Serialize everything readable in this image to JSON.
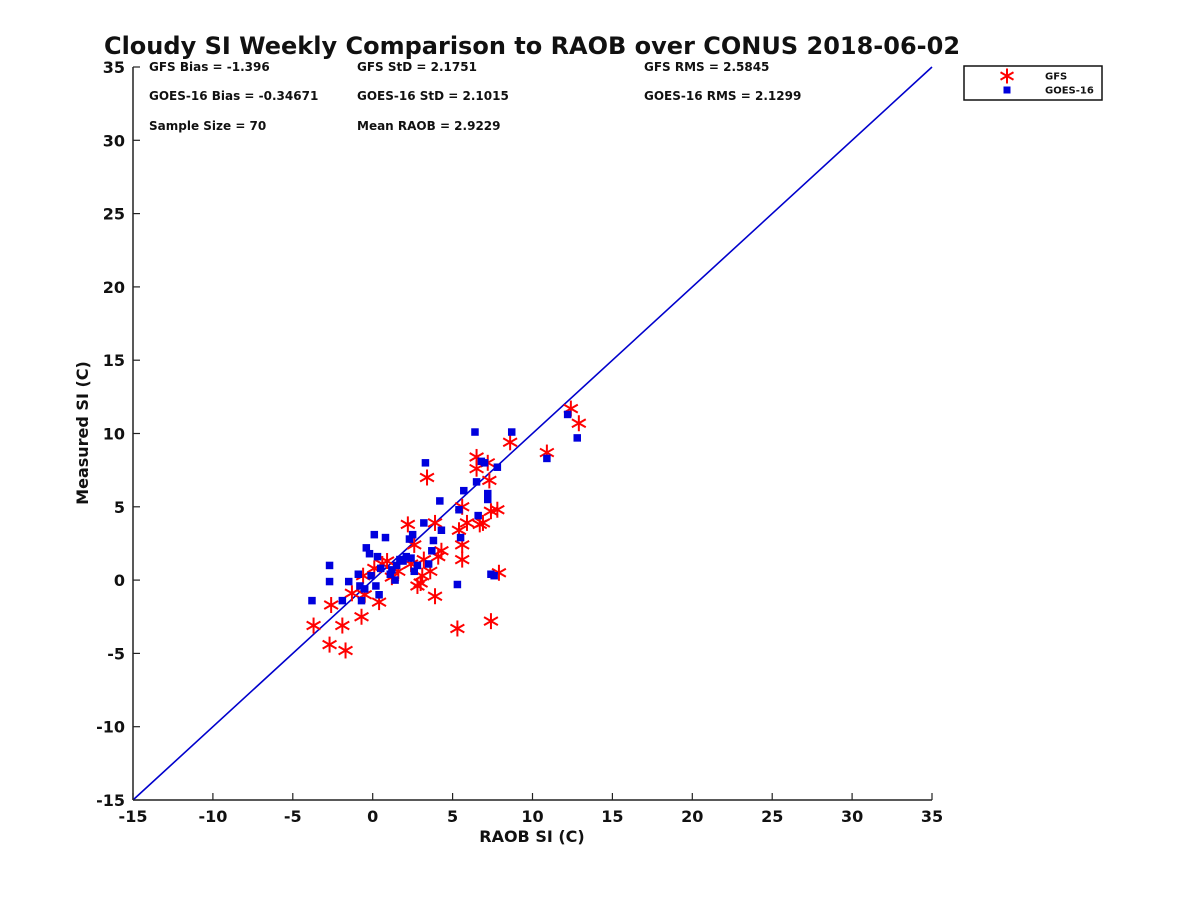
{
  "chart_data": {
    "type": "scatter",
    "title": "Cloudy SI Weekly Comparison to RAOB over CONUS 2018-06-02",
    "xlabel": "RAOB SI (C)",
    "ylabel": "Measured SI (C)",
    "xlim": [
      -15,
      35
    ],
    "ylim": [
      -15,
      35
    ],
    "xticks": [
      -15,
      -10,
      -5,
      0,
      5,
      10,
      15,
      20,
      25,
      30,
      35
    ],
    "yticks": [
      -15,
      -10,
      -5,
      0,
      5,
      10,
      15,
      20,
      25,
      30,
      35
    ],
    "grid": false,
    "legend_position": "top-right (outside plot)",
    "reference_line": {
      "from": [
        -15,
        -15
      ],
      "to": [
        35,
        35
      ],
      "color": "#0000cc"
    },
    "stats": [
      [
        "GFS Bias = -1.396",
        "GFS StD = 2.1751",
        "GFS RMS = 2.5845"
      ],
      [
        "GOES-16 Bias = -0.34671",
        "GOES-16 StD = 2.1015",
        "GOES-16 RMS = 2.1299"
      ],
      [
        "Sample Size = 70",
        "Mean RAOB = 2.9229",
        ""
      ]
    ],
    "series": [
      {
        "name": "GFS",
        "marker": "asterisk",
        "color": "#ff0000",
        "points": [
          [
            -3.7,
            -3.1
          ],
          [
            -2.6,
            -1.7
          ],
          [
            -2.7,
            -4.4
          ],
          [
            -1.9,
            -3.1
          ],
          [
            -1.7,
            -4.8
          ],
          [
            -0.7,
            -2.5
          ],
          [
            -1.3,
            -0.9
          ],
          [
            -0.5,
            -1.0
          ],
          [
            -0.6,
            0.3
          ],
          [
            0.1,
            0.8
          ],
          [
            0.4,
            -1.5
          ],
          [
            0.6,
            1.1
          ],
          [
            0.9,
            1.3
          ],
          [
            1.2,
            0.2
          ],
          [
            1.6,
            0.6
          ],
          [
            2.2,
            3.8
          ],
          [
            2.4,
            1.1
          ],
          [
            2.6,
            2.4
          ],
          [
            2.8,
            -0.4
          ],
          [
            3.0,
            -0.2
          ],
          [
            3.1,
            0.3
          ],
          [
            3.2,
            1.4
          ],
          [
            3.4,
            7.0
          ],
          [
            3.6,
            0.6
          ],
          [
            3.9,
            3.9
          ],
          [
            3.9,
            -1.1
          ],
          [
            4.1,
            1.6
          ],
          [
            4.3,
            2.0
          ],
          [
            5.3,
            -3.3
          ],
          [
            5.4,
            3.4
          ],
          [
            5.6,
            5.0
          ],
          [
            5.6,
            2.4
          ],
          [
            5.6,
            1.4
          ],
          [
            5.9,
            3.9
          ],
          [
            6.5,
            7.6
          ],
          [
            6.5,
            8.4
          ],
          [
            6.7,
            3.8
          ],
          [
            6.9,
            3.9
          ],
          [
            7.2,
            8.0
          ],
          [
            7.3,
            6.8
          ],
          [
            7.4,
            4.7
          ],
          [
            7.4,
            -2.8
          ],
          [
            7.8,
            4.8
          ],
          [
            7.9,
            0.5
          ],
          [
            8.6,
            9.4
          ],
          [
            10.9,
            8.7
          ],
          [
            12.4,
            11.7
          ],
          [
            12.9,
            10.7
          ]
        ]
      },
      {
        "name": "GOES-16",
        "marker": "square",
        "color": "#0000dd",
        "points": [
          [
            -3.8,
            -1.4
          ],
          [
            -2.7,
            1.0
          ],
          [
            -2.7,
            -0.1
          ],
          [
            -1.9,
            -1.4
          ],
          [
            -1.5,
            -0.1
          ],
          [
            -0.9,
            0.4
          ],
          [
            -0.8,
            -0.4
          ],
          [
            -0.7,
            -1.4
          ],
          [
            -0.5,
            -0.6
          ],
          [
            -0.4,
            2.2
          ],
          [
            -0.2,
            1.8
          ],
          [
            -0.1,
            0.3
          ],
          [
            0.1,
            3.1
          ],
          [
            0.2,
            -0.4
          ],
          [
            0.3,
            1.6
          ],
          [
            0.4,
            -1.0
          ],
          [
            0.5,
            0.8
          ],
          [
            0.8,
            2.9
          ],
          [
            1.1,
            0.4
          ],
          [
            1.2,
            0.7
          ],
          [
            1.4,
            0.0
          ],
          [
            1.5,
            1.0
          ],
          [
            1.7,
            1.4
          ],
          [
            1.9,
            1.3
          ],
          [
            2.1,
            1.6
          ],
          [
            2.3,
            2.8
          ],
          [
            2.4,
            1.5
          ],
          [
            2.5,
            3.1
          ],
          [
            2.6,
            0.6
          ],
          [
            2.8,
            1.0
          ],
          [
            3.2,
            3.9
          ],
          [
            3.3,
            8.0
          ],
          [
            3.5,
            1.1
          ],
          [
            3.7,
            2.0
          ],
          [
            3.8,
            2.7
          ],
          [
            4.2,
            5.4
          ],
          [
            4.3,
            3.4
          ],
          [
            5.3,
            -0.3
          ],
          [
            5.4,
            4.8
          ],
          [
            5.5,
            2.9
          ],
          [
            5.7,
            6.1
          ],
          [
            6.4,
            10.1
          ],
          [
            6.5,
            6.7
          ],
          [
            6.6,
            4.4
          ],
          [
            6.8,
            8.1
          ],
          [
            7.0,
            8.0
          ],
          [
            7.2,
            5.9
          ],
          [
            7.2,
            5.5
          ],
          [
            7.4,
            0.4
          ],
          [
            7.6,
            0.3
          ],
          [
            7.8,
            7.7
          ],
          [
            8.7,
            10.1
          ],
          [
            10.9,
            8.3
          ],
          [
            12.2,
            11.3
          ],
          [
            12.8,
            9.7
          ]
        ]
      }
    ]
  }
}
